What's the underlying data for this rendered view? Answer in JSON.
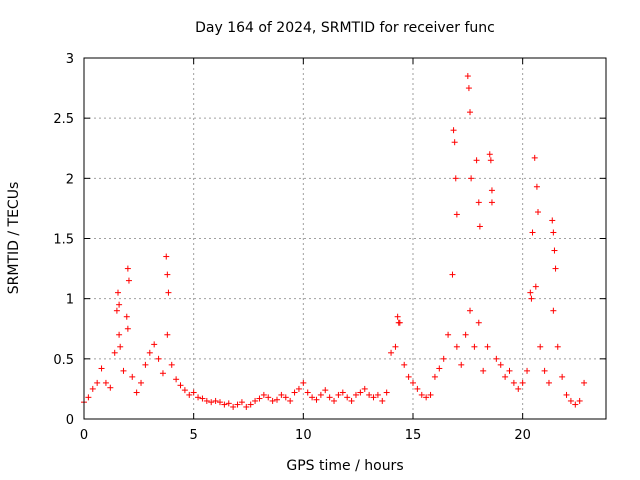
{
  "chart_data": {
    "type": "scatter",
    "title": "Day 164 of 2024, SRMTID for receiver func",
    "xlabel": "GPS time / hours",
    "ylabel": "SRMTID / TECUs",
    "xlim": [
      0,
      23.8
    ],
    "ylim": [
      0,
      3
    ],
    "xticks": [
      0,
      5,
      10,
      15,
      20
    ],
    "xtick_labels": [
      "0",
      "5",
      "10",
      "15",
      "20"
    ],
    "yticks": [
      0,
      0.5,
      1,
      1.5,
      2,
      2.5,
      3
    ],
    "ytick_labels": [
      "0",
      "0.5",
      "1",
      "1.5",
      "2",
      "2.5",
      "3"
    ],
    "grid": true,
    "marker": "+",
    "series": [
      {
        "name": "SRMTID",
        "color": "#ff0000",
        "x": [
          0.0,
          0.2,
          0.4,
          0.6,
          0.8,
          1.0,
          1.2,
          1.4,
          1.6,
          1.8,
          2.0,
          2.2,
          2.4,
          2.6,
          2.8,
          3.0,
          3.2,
          3.4,
          3.6,
          3.8,
          4.0,
          4.2,
          4.4,
          4.6,
          4.8,
          5.0,
          5.2,
          5.4,
          5.6,
          5.8,
          6.0,
          6.2,
          6.4,
          6.6,
          6.8,
          7.0,
          7.2,
          7.4,
          7.6,
          7.8,
          8.0,
          8.2,
          8.4,
          8.6,
          8.8,
          9.0,
          9.2,
          9.4,
          9.6,
          9.8,
          10.0,
          10.2,
          10.4,
          10.6,
          10.8,
          11.0,
          11.2,
          11.4,
          11.6,
          11.8,
          12.0,
          12.2,
          12.4,
          12.6,
          12.8,
          13.0,
          13.2,
          13.4,
          13.6,
          13.8,
          14.0,
          14.2,
          14.4,
          14.6,
          14.8,
          15.0,
          15.2,
          15.4,
          15.6,
          15.8,
          16.0,
          16.2,
          16.4,
          16.6,
          16.8,
          17.0,
          17.2,
          17.4,
          17.6,
          17.8,
          18.0,
          18.2,
          18.4,
          18.6,
          18.8,
          19.0,
          19.2,
          19.4,
          19.6,
          19.8,
          20.0,
          20.2,
          20.4,
          20.6,
          20.8,
          21.0,
          21.2,
          21.4,
          21.6,
          21.8,
          22.0,
          22.2,
          22.4,
          22.6,
          22.8,
          1.5,
          1.55,
          1.6,
          1.65,
          1.95,
          2.0,
          2.05,
          3.75,
          3.8,
          3.85,
          14.3,
          14.35,
          16.85,
          16.9,
          16.95,
          17.0,
          17.5,
          17.55,
          17.6,
          17.65,
          17.9,
          18.0,
          18.05,
          18.5,
          18.55,
          18.6,
          20.35,
          20.45,
          20.55,
          20.65,
          20.7,
          21.35,
          21.4,
          21.45,
          21.5
        ],
        "y": [
          0.14,
          0.18,
          0.25,
          0.3,
          0.42,
          0.3,
          0.26,
          0.55,
          0.7,
          0.4,
          0.75,
          0.35,
          0.22,
          0.3,
          0.45,
          0.55,
          0.62,
          0.5,
          0.38,
          0.7,
          0.45,
          0.33,
          0.28,
          0.24,
          0.2,
          0.22,
          0.18,
          0.17,
          0.15,
          0.14,
          0.15,
          0.14,
          0.12,
          0.13,
          0.1,
          0.12,
          0.14,
          0.1,
          0.12,
          0.15,
          0.17,
          0.2,
          0.18,
          0.15,
          0.16,
          0.2,
          0.18,
          0.15,
          0.22,
          0.25,
          0.3,
          0.22,
          0.18,
          0.16,
          0.2,
          0.24,
          0.18,
          0.15,
          0.2,
          0.22,
          0.18,
          0.15,
          0.2,
          0.22,
          0.25,
          0.2,
          0.18,
          0.2,
          0.15,
          0.22,
          0.55,
          0.6,
          0.8,
          0.45,
          0.35,
          0.3,
          0.25,
          0.2,
          0.18,
          0.2,
          0.35,
          0.42,
          0.5,
          0.7,
          1.2,
          0.6,
          0.45,
          0.7,
          0.9,
          0.6,
          0.8,
          0.4,
          0.6,
          1.8,
          0.5,
          0.45,
          0.35,
          0.4,
          0.3,
          0.25,
          0.3,
          0.4,
          1.0,
          1.1,
          0.6,
          0.4,
          0.3,
          0.9,
          0.6,
          0.35,
          0.2,
          0.15,
          0.12,
          0.15,
          0.3,
          0.9,
          1.05,
          0.95,
          0.6,
          0.85,
          1.25,
          1.15,
          1.35,
          1.2,
          1.05,
          0.85,
          0.8,
          2.4,
          2.3,
          2.0,
          1.7,
          2.85,
          2.75,
          2.55,
          2.0,
          2.15,
          1.8,
          1.6,
          2.2,
          2.15,
          1.9,
          1.05,
          1.55,
          2.17,
          1.93,
          1.72,
          1.65,
          1.55,
          1.4,
          1.25
        ]
      }
    ]
  }
}
